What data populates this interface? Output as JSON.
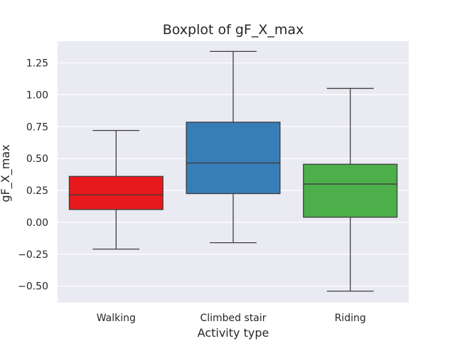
{
  "chart_data": {
    "type": "boxplot",
    "title": "Boxplot of gF_X_max",
    "xlabel": "Activity type",
    "ylabel": "gF_X_max",
    "ylim": [
      -0.63,
      1.42
    ],
    "yticks": [
      -0.5,
      -0.25,
      0.0,
      0.25,
      0.5,
      0.75,
      1.0,
      1.25
    ],
    "ytick_labels": [
      "−0.50",
      "−0.25",
      "0.00",
      "0.25",
      "0.50",
      "0.75",
      "1.00",
      "1.25"
    ],
    "grid": true,
    "categories": [
      "Walking",
      "Climbed stair",
      "Riding"
    ],
    "boxes": [
      {
        "category": "Walking",
        "whisker_low": -0.21,
        "q1": 0.1,
        "median": 0.215,
        "q3": 0.36,
        "whisker_high": 0.72,
        "color": "#e8191a"
      },
      {
        "category": "Climbed stair",
        "whisker_low": -0.16,
        "q1": 0.225,
        "median": 0.465,
        "q3": 0.785,
        "whisker_high": 1.34,
        "color": "#377eb8"
      },
      {
        "category": "Riding",
        "whisker_low": -0.54,
        "q1": 0.04,
        "median": 0.3,
        "q3": 0.455,
        "whisker_high": 1.05,
        "color": "#4daf4a"
      }
    ]
  },
  "colors": {
    "plot_background": "#eaeaf2",
    "grid": "#ffffff",
    "box_edge": "#3d3d3d"
  }
}
